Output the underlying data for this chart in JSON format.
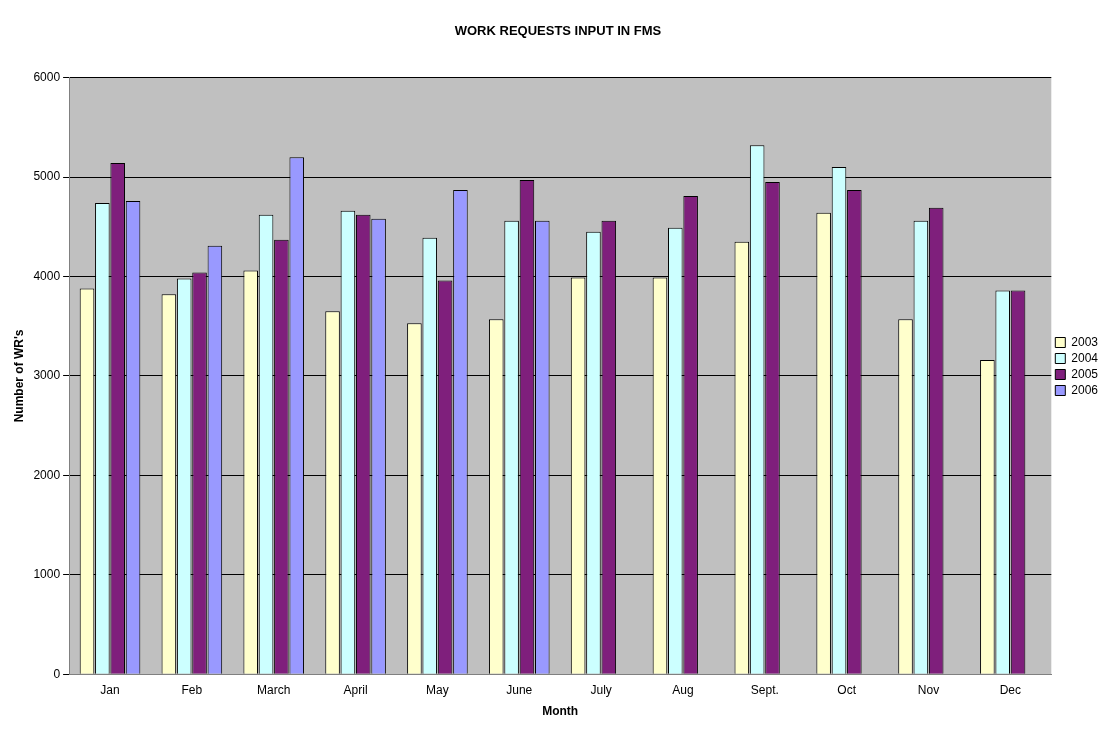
{
  "chart_data": {
    "type": "bar",
    "title": "WORK REQUESTS INPUT IN FMS",
    "xlabel": "Month",
    "ylabel": "Number of WR's",
    "categories": [
      "Jan",
      "Feb",
      "March",
      "April",
      "May",
      "June",
      "July",
      "Aug",
      "Sept.",
      "Oct",
      "Nov",
      "Dec"
    ],
    "series": [
      {
        "name": "2003",
        "color": "#ffffcc",
        "values": [
          3880,
          3820,
          4060,
          3650,
          3530,
          3570,
          3990,
          3990,
          4350,
          4640,
          3570,
          3160
        ]
      },
      {
        "name": "2004",
        "color": "#ccffff",
        "values": [
          4740,
          3980,
          4620,
          4660,
          4390,
          4560,
          4450,
          4490,
          5320,
          5100,
          4560,
          3860
        ]
      },
      {
        "name": "2005",
        "color": "#7f1f7c",
        "values": [
          5140,
          4040,
          4370,
          4620,
          3960,
          4970,
          4560,
          4810,
          4950,
          4870,
          4690,
          3860
        ]
      },
      {
        "name": "2006",
        "color": "#9999ff",
        "values": [
          4760,
          4310,
          5200,
          4580,
          4870,
          4560,
          null,
          null,
          null,
          null,
          null,
          null
        ]
      }
    ],
    "ylim": [
      0,
      6000
    ],
    "yticks": [
      0,
      1000,
      2000,
      3000,
      4000,
      5000,
      6000
    ],
    "grid": "y",
    "legend": "right"
  }
}
